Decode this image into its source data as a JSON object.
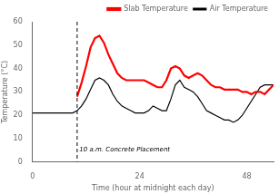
{
  "chart_data": {
    "type": "line",
    "xlabel": "Time (hour at midnight each day)",
    "ylabel": "Temperature (°C)",
    "xlim": [
      0,
      54
    ],
    "ylim": [
      0,
      60
    ],
    "xticks": [
      0,
      24,
      48
    ],
    "yticks": [
      0,
      10,
      20,
      30,
      40,
      50,
      60
    ],
    "grid": false,
    "legend": "upper right",
    "series": [
      {
        "name": "Slab Temperature",
        "color": "#ff0000",
        "x": [
          10,
          11,
          12,
          13,
          14,
          15,
          16,
          17,
          18,
          19,
          20,
          21,
          22,
          23,
          24,
          25,
          26,
          27,
          28,
          29,
          30,
          31,
          32,
          33,
          34,
          35,
          36,
          37,
          38,
          39,
          40,
          41,
          42,
          43,
          44,
          45,
          46,
          47,
          48,
          49,
          50,
          51,
          52,
          53,
          54
        ],
        "values": [
          28,
          34,
          41,
          49,
          53,
          54,
          51,
          46,
          42,
          38,
          36,
          35,
          35,
          35,
          35,
          35,
          34,
          33,
          32,
          32,
          35,
          40,
          41,
          40,
          37,
          36,
          37,
          38,
          37,
          35,
          33,
          32,
          32,
          31,
          31,
          31,
          31,
          30,
          30,
          29,
          30,
          30,
          29,
          31,
          33
        ]
      },
      {
        "name": "Air Temperature",
        "color": "#000000",
        "x": [
          0,
          1,
          2,
          3,
          4,
          5,
          6,
          7,
          8,
          9,
          10,
          11,
          12,
          13,
          14,
          15,
          16,
          17,
          18,
          19,
          20,
          21,
          22,
          23,
          24,
          25,
          26,
          27,
          28,
          29,
          30,
          31,
          32,
          33,
          34,
          35,
          36,
          37,
          38,
          39,
          40,
          41,
          42,
          43,
          44,
          45,
          46,
          47,
          48,
          49,
          50,
          51,
          52,
          53,
          54
        ],
        "values": [
          21,
          21,
          21,
          21,
          21,
          21,
          21,
          21,
          21,
          21,
          22,
          24,
          27,
          31,
          35,
          36,
          35,
          33,
          29,
          26,
          24,
          23,
          22,
          21,
          21,
          21,
          22,
          24,
          23,
          22,
          22,
          27,
          33,
          35,
          32,
          31,
          30,
          28,
          25,
          22,
          21,
          20,
          19,
          18,
          18,
          17,
          18,
          20,
          23,
          26,
          29,
          32,
          33,
          33,
          33
        ]
      }
    ],
    "vline": {
      "x": 10,
      "line_style": "dashed",
      "color": "#000000"
    },
    "annotations": [
      {
        "text": "10 a.m. Concrete Placement",
        "x": 10.5,
        "y": 4
      }
    ]
  }
}
